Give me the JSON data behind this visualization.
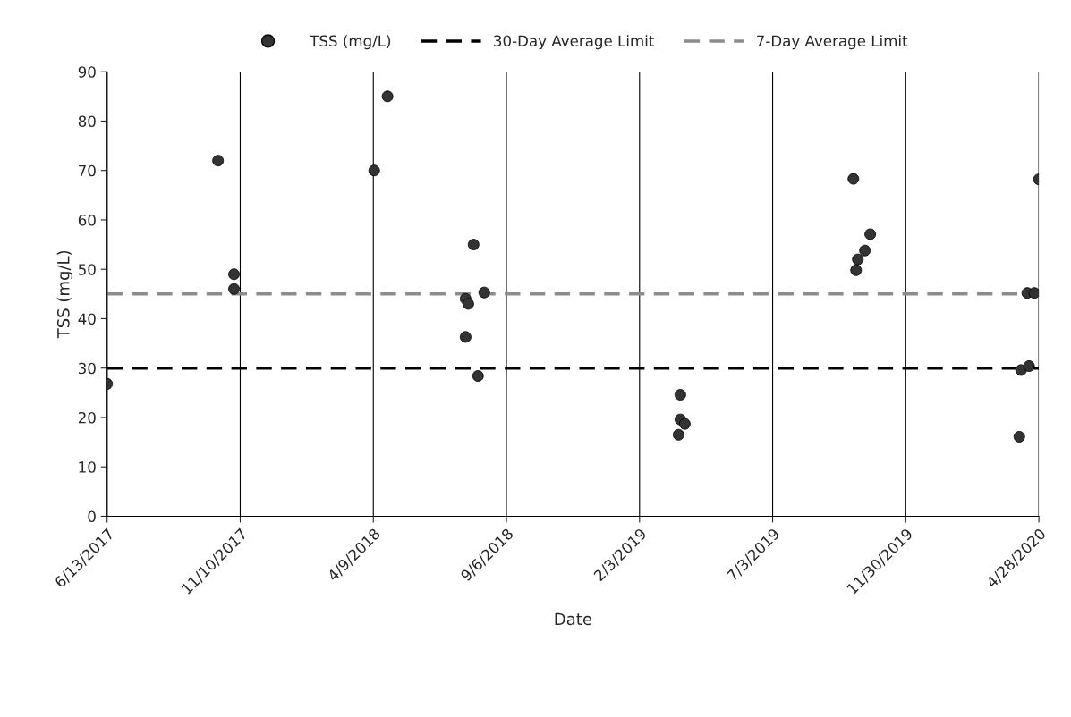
{
  "chart_data": {
    "type": "scatter",
    "xlabel": "Date",
    "ylabel": "TSS (mg/L)",
    "x": [
      "2017-06-13",
      "2017-10-16",
      "2017-11-03",
      "2017-11-03",
      "2018-04-10",
      "2018-04-25",
      "2018-07-31",
      "2018-07-22",
      "2018-07-25",
      "2018-08-12",
      "2018-07-22",
      "2018-08-05",
      "2019-03-21",
      "2019-03-21",
      "2019-03-26",
      "2019-03-19",
      "2019-10-02",
      "2019-10-21",
      "2019-10-15",
      "2019-10-07",
      "2019-10-05",
      "2020-04-28",
      "2020-04-15",
      "2020-04-23",
      "2020-04-08",
      "2020-04-17",
      "2020-04-06"
    ],
    "series": [
      {
        "name": "TSS (mg/L)",
        "color": "#333333",
        "values": [
          26.8,
          72,
          49,
          46,
          70,
          85,
          55,
          44,
          43,
          45.3,
          36.3,
          28.4,
          24.6,
          19.6,
          18.7,
          16.5,
          68.3,
          57.1,
          53.8,
          52,
          49.8,
          68.2,
          45.2,
          45.2,
          29.6,
          30.4,
          16.1
        ]
      }
    ],
    "marker": "circle",
    "ref_lines": [
      {
        "axis": "y",
        "value": 30,
        "label": "30-Day Average Limit",
        "color": "#000000",
        "line_style": "dashed"
      },
      {
        "axis": "y",
        "value": 45,
        "label": "7-Day Average Limit",
        "color": "#8c8c8c",
        "line_style": "dashed"
      }
    ],
    "xlim": [
      "2017-06-13",
      "2020-04-28"
    ],
    "xticks": [
      {
        "value": "2017-06-13",
        "label": "6/13/2017"
      },
      {
        "value": "2017-11-10",
        "label": "11/10/2017"
      },
      {
        "value": "2018-04-09",
        "label": "4/9/2018"
      },
      {
        "value": "2018-09-06",
        "label": "9/6/2018"
      },
      {
        "value": "2019-02-03",
        "label": "2/3/2019"
      },
      {
        "value": "2019-07-03",
        "label": "7/3/2019"
      },
      {
        "value": "2019-11-30",
        "label": "11/30/2019"
      },
      {
        "value": "2020-04-28",
        "label": "4/28/2020"
      }
    ],
    "ylim": [
      0,
      90
    ],
    "yticks": [
      0,
      10,
      20,
      30,
      40,
      50,
      60,
      70,
      80,
      90
    ],
    "grid": "x",
    "legend": "top"
  }
}
